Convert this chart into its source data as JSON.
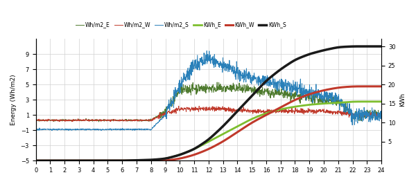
{
  "title": "",
  "xlabel": "",
  "ylabel_left": "Energy (Wh/m2)",
  "ylabel_right": "KWh",
  "xlim": [
    0,
    24
  ],
  "ylim_left": [
    -5,
    11
  ],
  "ylim_right": [
    0,
    32
  ],
  "yticks_left": [
    -5,
    -3,
    -1,
    1,
    3,
    5,
    7,
    9
  ],
  "yticks_right": [
    5,
    10,
    15,
    20,
    25,
    30
  ],
  "xticks": [
    0,
    1,
    2,
    3,
    4,
    5,
    6,
    7,
    8,
    9,
    10,
    11,
    12,
    13,
    14,
    15,
    16,
    17,
    18,
    19,
    20,
    21,
    22,
    23,
    24
  ],
  "legend_labels": [
    "Wh/m2_E",
    "Wh/m2_W",
    "Wh/m2_S",
    "KWh_E",
    "KWh_W",
    "KWh_S"
  ],
  "legend_colors": [
    "#4e7a2e",
    "#c0392b",
    "#2980b9",
    "#7dbe2e",
    "#c0392b",
    "#1a1a1a"
  ],
  "line_widths": [
    0.7,
    0.7,
    0.7,
    2.0,
    2.2,
    2.5
  ],
  "background_color": "#ffffff",
  "grid_color": "#d0d0d0",
  "wh_e_base": [
    0.3,
    0.3,
    0.3,
    0.3,
    0.3,
    0.3,
    0.3,
    0.3,
    0.3,
    1.5,
    4.2,
    4.5,
    4.5,
    4.5,
    4.5,
    4.2,
    4.0,
    3.8,
    3.5,
    3.2,
    3.0,
    2.8,
    1.0,
    1.0,
    1.0
  ],
  "wh_w_base": [
    0.3,
    0.3,
    0.3,
    0.3,
    0.3,
    0.3,
    0.3,
    0.3,
    0.3,
    1.2,
    1.8,
    1.8,
    1.8,
    1.8,
    1.6,
    1.5,
    1.5,
    1.5,
    1.5,
    1.5,
    1.5,
    1.3,
    1.0,
    1.0,
    1.0
  ],
  "wh_s_base": [
    -0.9,
    -0.9,
    -0.9,
    -0.9,
    -0.9,
    -0.9,
    -0.9,
    -0.9,
    -0.9,
    1.0,
    5.0,
    7.5,
    8.5,
    7.5,
    6.5,
    6.0,
    5.5,
    5.0,
    4.5,
    4.0,
    3.5,
    3.0,
    1.0,
    1.0,
    1.0
  ],
  "kwh_e_pts": [
    [
      0,
      0
    ],
    [
      8,
      0
    ],
    [
      9,
      0.5
    ],
    [
      10,
      1.5
    ],
    [
      11,
      3
    ],
    [
      12,
      5
    ],
    [
      13,
      7
    ],
    [
      14,
      9
    ],
    [
      15,
      11
    ],
    [
      16,
      12.5
    ],
    [
      17,
      13.5
    ],
    [
      18,
      14.2
    ],
    [
      19,
      14.7
    ],
    [
      20,
      15.0
    ],
    [
      21,
      15.2
    ],
    [
      22,
      15.5
    ],
    [
      24,
      15.5
    ]
  ],
  "kwh_w_pts": [
    [
      0,
      0
    ],
    [
      8,
      0
    ],
    [
      9,
      0
    ],
    [
      10,
      0.5
    ],
    [
      11,
      1.5
    ],
    [
      12,
      3
    ],
    [
      13,
      5
    ],
    [
      14,
      7.5
    ],
    [
      15,
      10
    ],
    [
      16,
      12
    ],
    [
      17,
      14
    ],
    [
      18,
      16
    ],
    [
      19,
      17.5
    ],
    [
      20,
      18.5
    ],
    [
      21,
      19.2
    ],
    [
      22,
      19.5
    ],
    [
      24,
      19.5
    ]
  ],
  "kwh_s_pts": [
    [
      0,
      0
    ],
    [
      6,
      0
    ],
    [
      8,
      0.2
    ],
    [
      9,
      0.5
    ],
    [
      10,
      1.5
    ],
    [
      11,
      3
    ],
    [
      12,
      5.5
    ],
    [
      13,
      9
    ],
    [
      14,
      13
    ],
    [
      15,
      17
    ],
    [
      16,
      21
    ],
    [
      17,
      24
    ],
    [
      18,
      26.5
    ],
    [
      19,
      28
    ],
    [
      20,
      29
    ],
    [
      21,
      29.8
    ],
    [
      22,
      30
    ],
    [
      24,
      30
    ]
  ]
}
